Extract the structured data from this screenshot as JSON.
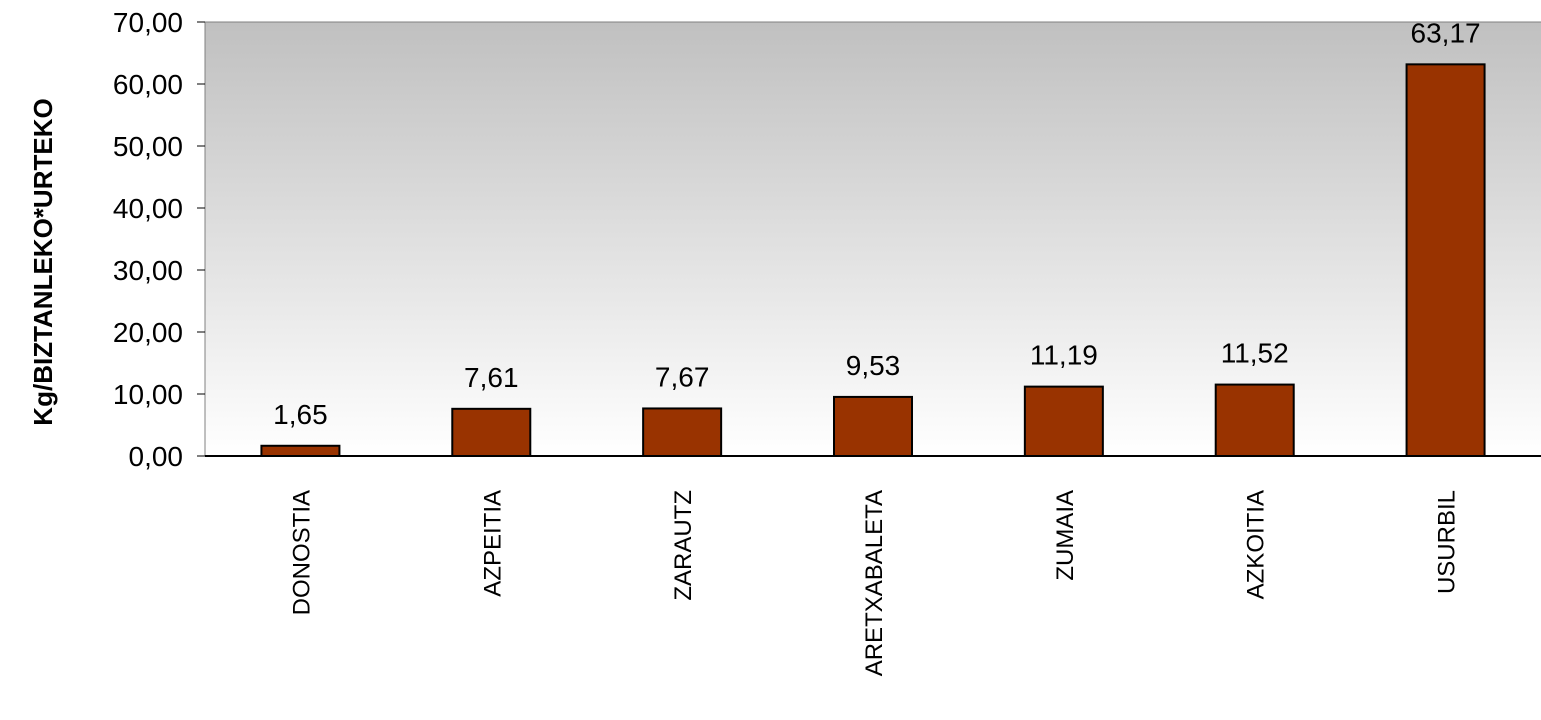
{
  "chart_data": {
    "type": "bar",
    "categories": [
      "DONOSTIA",
      "AZPEITIA",
      "ZARAUTZ",
      "ARETXABALETA",
      "ZUMAIA",
      "AZKOITIA",
      "USURBIL"
    ],
    "values": [
      1.65,
      7.61,
      7.67,
      9.53,
      11.19,
      11.52,
      63.17
    ],
    "data_labels": [
      "1,65",
      "7,61",
      "7,67",
      "9,53",
      "11,19",
      "11,52",
      "63,17"
    ],
    "y_ticks": [
      0,
      10,
      20,
      30,
      40,
      50,
      60,
      70
    ],
    "y_tick_labels": [
      "0,00",
      "10,00",
      "20,00",
      "30,00",
      "40,00",
      "50,00",
      "60,00",
      "70,00"
    ],
    "ylim": [
      0,
      70
    ],
    "ylabel": "Kg/BIZTANLEKO*URTEKO",
    "xlabel": "",
    "title": "",
    "grid": false,
    "legend": "none",
    "bar_color": "#993300",
    "bar_outline_color": "#000000",
    "plot_background": "gradient #c0c0c0 to #ffffff (top to bottom)"
  }
}
